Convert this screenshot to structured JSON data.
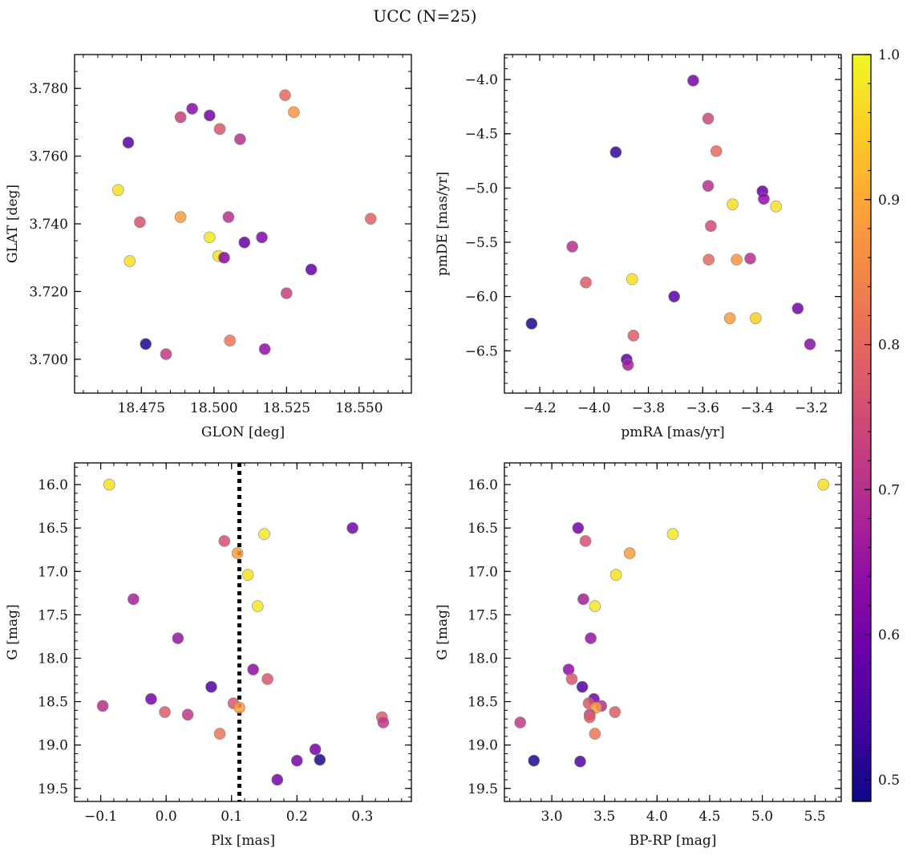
{
  "figure": {
    "title": "UCC (N=25)"
  },
  "colorbar": {
    "min": 0.485,
    "max": 1.0,
    "ticks": [
      0.5,
      0.6,
      0.7,
      0.8,
      0.9,
      1.0
    ],
    "tick_labels": [
      "0.5",
      "0.6",
      "0.7",
      "0.8",
      "0.9",
      "1.0"
    ],
    "colormap": "plasma"
  },
  "chart_data": [
    {
      "type": "scatter",
      "id": "glon-glat",
      "xlabel": "GLON [deg]",
      "ylabel": "GLAT [deg]",
      "xlim": [
        18.452,
        18.568
      ],
      "ylim": [
        3.69,
        3.79
      ],
      "x_ticks": [
        18.475,
        18.5,
        18.525,
        18.55
      ],
      "x_tick_labels": [
        "18.475",
        "18.500",
        "18.525",
        "18.550"
      ],
      "x_minor_step": 0.005,
      "y_ticks": [
        3.7,
        3.72,
        3.74,
        3.76,
        3.78
      ],
      "y_tick_labels": [
        "3.700",
        "3.720",
        "3.740",
        "3.760",
        "3.780"
      ],
      "y_minor_step": 0.005,
      "y_inverted": false,
      "points": [
        {
          "x": 18.4705,
          "y": 3.764,
          "c": 0.56
        },
        {
          "x": 18.467,
          "y": 3.75,
          "c": 0.97
        },
        {
          "x": 18.4745,
          "y": 3.7405,
          "c": 0.76
        },
        {
          "x": 18.471,
          "y": 3.729,
          "c": 0.97
        },
        {
          "x": 18.4765,
          "y": 3.7045,
          "c": 0.5
        },
        {
          "x": 18.4835,
          "y": 3.7015,
          "c": 0.72
        },
        {
          "x": 18.4885,
          "y": 3.7715,
          "c": 0.73
        },
        {
          "x": 18.4885,
          "y": 3.742,
          "c": 0.88
        },
        {
          "x": 18.4925,
          "y": 3.774,
          "c": 0.63
        },
        {
          "x": 18.4985,
          "y": 3.772,
          "c": 0.6
        },
        {
          "x": 18.4985,
          "y": 3.736,
          "c": 0.98
        },
        {
          "x": 18.5015,
          "y": 3.7305,
          "c": 0.97
        },
        {
          "x": 18.5035,
          "y": 3.73,
          "c": 0.63
        },
        {
          "x": 18.502,
          "y": 3.768,
          "c": 0.77
        },
        {
          "x": 18.505,
          "y": 3.742,
          "c": 0.7
        },
        {
          "x": 18.5055,
          "y": 3.7055,
          "c": 0.82
        },
        {
          "x": 18.509,
          "y": 3.765,
          "c": 0.7
        },
        {
          "x": 18.5105,
          "y": 3.7345,
          "c": 0.58
        },
        {
          "x": 18.5165,
          "y": 3.736,
          "c": 0.62
        },
        {
          "x": 18.5175,
          "y": 3.703,
          "c": 0.64
        },
        {
          "x": 18.5245,
          "y": 3.778,
          "c": 0.8
        },
        {
          "x": 18.5275,
          "y": 3.773,
          "c": 0.87
        },
        {
          "x": 18.525,
          "y": 3.7195,
          "c": 0.73
        },
        {
          "x": 18.5335,
          "y": 3.7265,
          "c": 0.58
        },
        {
          "x": 18.554,
          "y": 3.7415,
          "c": 0.79
        }
      ]
    },
    {
      "type": "scatter",
      "id": "pmra-pmde",
      "xlabel": "pmRA [mas/yr]",
      "ylabel": "pmDE [mas/yr]",
      "xlim": [
        -4.33,
        -3.09
      ],
      "ylim": [
        -6.89,
        -3.77
      ],
      "x_ticks": [
        -4.2,
        -4.0,
        -3.8,
        -3.6,
        -3.4,
        -3.2
      ],
      "x_tick_labels": [
        "−4.2",
        "−4.0",
        "−3.8",
        "−3.6",
        "−3.4",
        "−3.2"
      ],
      "x_minor_step": 0.05,
      "y_ticks": [
        -6.5,
        -6.0,
        -5.5,
        -5.0,
        -4.5,
        -4.0
      ],
      "y_tick_labels": [
        "−6.5",
        "−6.0",
        "−5.5",
        "−5.0",
        "−4.5",
        "−4.0"
      ],
      "y_minor_step": 0.1,
      "y_inverted": false,
      "points": [
        {
          "x": -4.23,
          "y": -6.25,
          "c": 0.5
        },
        {
          "x": -4.08,
          "y": -5.54,
          "c": 0.7
        },
        {
          "x": -4.03,
          "y": -5.87,
          "c": 0.78
        },
        {
          "x": -3.92,
          "y": -4.67,
          "c": 0.52
        },
        {
          "x": -3.88,
          "y": -6.58,
          "c": 0.57
        },
        {
          "x": -3.875,
          "y": -6.63,
          "c": 0.67
        },
        {
          "x": -3.86,
          "y": -5.84,
          "c": 0.97
        },
        {
          "x": -3.855,
          "y": -6.36,
          "c": 0.78
        },
        {
          "x": -3.705,
          "y": -6.0,
          "c": 0.56
        },
        {
          "x": -3.635,
          "y": -4.01,
          "c": 0.6
        },
        {
          "x": -3.58,
          "y": -4.36,
          "c": 0.74
        },
        {
          "x": -3.58,
          "y": -4.98,
          "c": 0.7
        },
        {
          "x": -3.578,
          "y": -5.66,
          "c": 0.8
        },
        {
          "x": -3.57,
          "y": -5.35,
          "c": 0.75
        },
        {
          "x": -3.55,
          "y": -4.66,
          "c": 0.8
        },
        {
          "x": -3.5,
          "y": -6.2,
          "c": 0.88
        },
        {
          "x": -3.49,
          "y": -5.15,
          "c": 0.97
        },
        {
          "x": -3.475,
          "y": -5.66,
          "c": 0.87
        },
        {
          "x": -3.425,
          "y": -5.65,
          "c": 0.7
        },
        {
          "x": -3.405,
          "y": -6.2,
          "c": 0.95
        },
        {
          "x": -3.38,
          "y": -5.03,
          "c": 0.58
        },
        {
          "x": -3.375,
          "y": -5.1,
          "c": 0.64
        },
        {
          "x": -3.33,
          "y": -5.17,
          "c": 0.97
        },
        {
          "x": -3.25,
          "y": -6.11,
          "c": 0.6
        },
        {
          "x": -3.205,
          "y": -6.44,
          "c": 0.63
        }
      ]
    },
    {
      "type": "scatter",
      "id": "plx-g",
      "xlabel": "Plx [mas]",
      "ylabel": "G [mag]",
      "xlim": [
        -0.14,
        0.375
      ],
      "ylim": [
        19.65,
        15.75
      ],
      "x_ticks": [
        -0.1,
        0.0,
        0.1,
        0.2,
        0.3
      ],
      "x_tick_labels": [
        "−0.1",
        "0.0",
        "0.1",
        "0.2",
        "0.3"
      ],
      "x_minor_step": 0.02,
      "y_ticks": [
        16.0,
        16.5,
        17.0,
        17.5,
        18.0,
        18.5,
        19.0,
        19.5
      ],
      "y_tick_labels": [
        "16.0",
        "16.5",
        "17.0",
        "17.5",
        "18.0",
        "18.5",
        "19.0",
        "19.5"
      ],
      "y_minor_step": 0.1,
      "y_inverted": true,
      "vline": 0.112,
      "points": [
        {
          "x": -0.087,
          "y": 16.0,
          "c": 0.97
        },
        {
          "x": -0.05,
          "y": 17.32,
          "c": 0.67
        },
        {
          "x": 0.018,
          "y": 17.77,
          "c": 0.65
        },
        {
          "x": -0.097,
          "y": 18.55,
          "c": 0.7
        },
        {
          "x": -0.023,
          "y": 18.47,
          "c": 0.6
        },
        {
          "x": -0.002,
          "y": 18.62,
          "c": 0.78
        },
        {
          "x": 0.033,
          "y": 18.65,
          "c": 0.72
        },
        {
          "x": 0.069,
          "y": 18.33,
          "c": 0.55
        },
        {
          "x": 0.082,
          "y": 18.87,
          "c": 0.82
        },
        {
          "x": 0.089,
          "y": 16.65,
          "c": 0.76
        },
        {
          "x": 0.103,
          "y": 18.52,
          "c": 0.77
        },
        {
          "x": 0.109,
          "y": 16.79,
          "c": 0.88
        },
        {
          "x": 0.112,
          "y": 18.57,
          "c": 0.88
        },
        {
          "x": 0.125,
          "y": 17.04,
          "c": 0.97
        },
        {
          "x": 0.133,
          "y": 18.13,
          "c": 0.64
        },
        {
          "x": 0.14,
          "y": 17.4,
          "c": 0.98
        },
        {
          "x": 0.15,
          "y": 16.57,
          "c": 0.98
        },
        {
          "x": 0.155,
          "y": 18.24,
          "c": 0.77
        },
        {
          "x": 0.17,
          "y": 19.4,
          "c": 0.6
        },
        {
          "x": 0.2,
          "y": 19.18,
          "c": 0.6
        },
        {
          "x": 0.228,
          "y": 19.05,
          "c": 0.6
        },
        {
          "x": 0.235,
          "y": 19.17,
          "c": 0.5
        },
        {
          "x": 0.285,
          "y": 16.5,
          "c": 0.6
        },
        {
          "x": 0.33,
          "y": 18.68,
          "c": 0.78
        },
        {
          "x": 0.332,
          "y": 18.74,
          "c": 0.72
        }
      ]
    },
    {
      "type": "scatter",
      "id": "bprp-g",
      "xlabel": "BP-RP [mag]",
      "ylabel": "G [mag]",
      "xlim": [
        2.55,
        5.75
      ],
      "ylim": [
        19.65,
        15.75
      ],
      "x_ticks": [
        3.0,
        3.5,
        4.0,
        4.5,
        5.0,
        5.5
      ],
      "x_tick_labels": [
        "3.0",
        "3.5",
        "4.0",
        "4.5",
        "5.0",
        "5.5"
      ],
      "x_minor_step": 0.1,
      "y_ticks": [
        16.0,
        16.5,
        17.0,
        17.5,
        18.0,
        18.5,
        19.0,
        19.5
      ],
      "y_tick_labels": [
        "16.0",
        "16.5",
        "17.0",
        "17.5",
        "18.0",
        "18.5",
        "19.0",
        "19.5"
      ],
      "y_minor_step": 0.1,
      "y_inverted": true,
      "points": [
        {
          "x": 5.58,
          "y": 16.0,
          "c": 0.97
        },
        {
          "x": 4.15,
          "y": 16.57,
          "c": 0.98
        },
        {
          "x": 3.74,
          "y": 16.79,
          "c": 0.88
        },
        {
          "x": 3.61,
          "y": 17.04,
          "c": 0.97
        },
        {
          "x": 3.41,
          "y": 17.4,
          "c": 0.98
        },
        {
          "x": 3.25,
          "y": 16.5,
          "c": 0.6
        },
        {
          "x": 3.32,
          "y": 16.65,
          "c": 0.76
        },
        {
          "x": 3.3,
          "y": 17.32,
          "c": 0.67
        },
        {
          "x": 3.37,
          "y": 17.77,
          "c": 0.65
        },
        {
          "x": 3.16,
          "y": 18.13,
          "c": 0.64
        },
        {
          "x": 3.19,
          "y": 18.24,
          "c": 0.77
        },
        {
          "x": 3.29,
          "y": 18.33,
          "c": 0.55
        },
        {
          "x": 3.4,
          "y": 18.47,
          "c": 0.6
        },
        {
          "x": 3.47,
          "y": 18.55,
          "c": 0.7
        },
        {
          "x": 3.35,
          "y": 18.52,
          "c": 0.77
        },
        {
          "x": 3.42,
          "y": 18.57,
          "c": 0.88
        },
        {
          "x": 3.6,
          "y": 18.62,
          "c": 0.78
        },
        {
          "x": 3.36,
          "y": 18.65,
          "c": 0.72
        },
        {
          "x": 3.36,
          "y": 18.68,
          "c": 0.78
        },
        {
          "x": 2.7,
          "y": 18.74,
          "c": 0.72
        },
        {
          "x": 3.41,
          "y": 18.87,
          "c": 0.82
        },
        {
          "x": 2.83,
          "y": 19.18,
          "c": 0.5
        },
        {
          "x": 3.27,
          "y": 19.19,
          "c": 0.55
        }
      ]
    }
  ]
}
